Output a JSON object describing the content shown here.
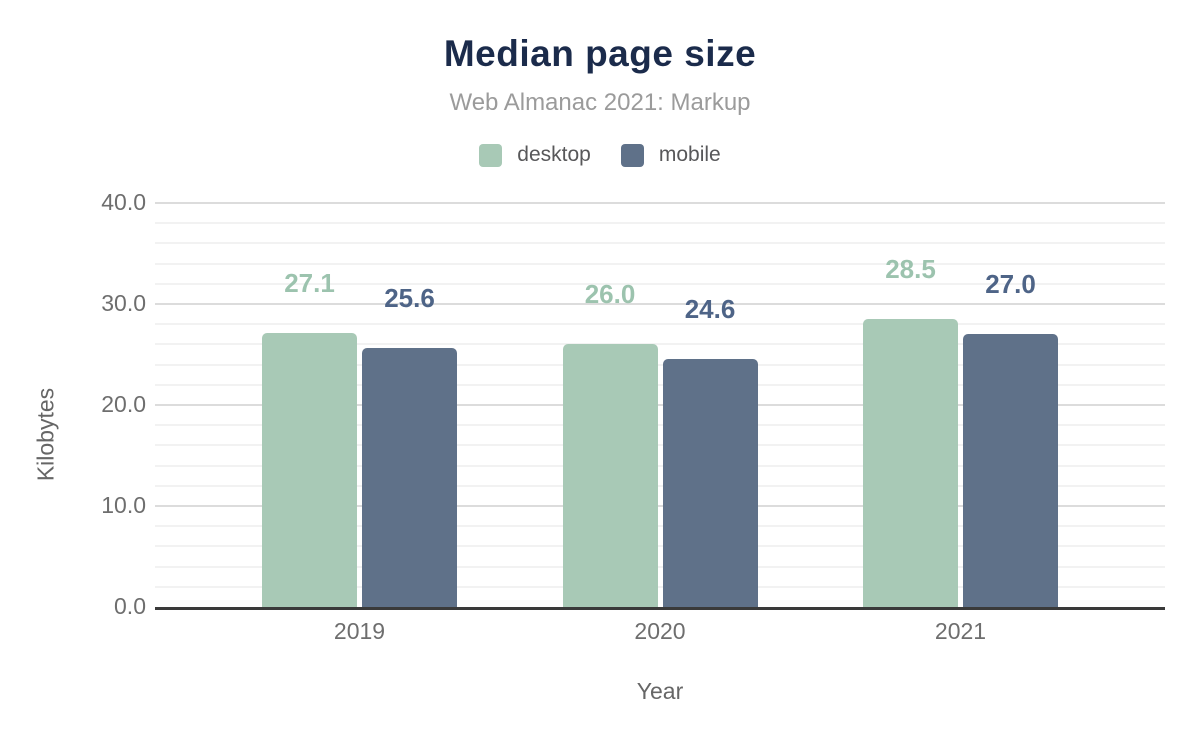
{
  "chart_data": {
    "type": "bar",
    "title": "Median page size",
    "subtitle": "Web Almanac 2021: Markup",
    "xlabel": "Year",
    "ylabel": "Kilobytes",
    "categories": [
      "2019",
      "2020",
      "2021"
    ],
    "series": [
      {
        "name": "desktop",
        "color": "#a8c9b6",
        "label_color": "#9cc3ae",
        "values": [
          27.1,
          26.0,
          28.5
        ]
      },
      {
        "name": "mobile",
        "color": "#5f7189",
        "label_color": "#4e6487",
        "values": [
          25.6,
          24.6,
          27.0
        ]
      }
    ],
    "ylim": [
      0,
      40
    ],
    "y_major_step": 10,
    "y_minor_step": 2,
    "y_tick_decimals": 1,
    "value_label_decimals": 1,
    "grid": true,
    "legend_position": "top"
  },
  "colors": {
    "title": "#1b2b4b",
    "subtitle": "#9b9b9b",
    "axis_text": "#6e6e6e",
    "axis_line": "#3a3a3a",
    "grid_major": "#dcdcdc",
    "grid_minor": "#f2f2f2",
    "background": "#ffffff"
  }
}
